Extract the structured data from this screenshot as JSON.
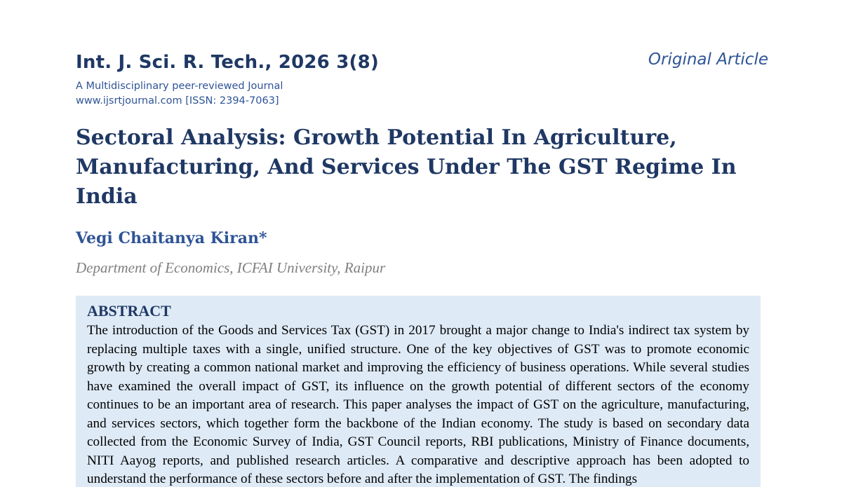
{
  "header": {
    "journal_title": "Int. J. Sci. R. Tech., 2026 3(8)",
    "journal_subtitle": "A Multidisciplinary peer-reviewed Journal",
    "journal_web": "www.ijsrtjournal.com [ISSN: 2394-7063]",
    "article_type": "Original Article"
  },
  "paper": {
    "title": "Sectoral Analysis: Growth Potential In Agriculture, Manufacturing, And Services Under The GST Regime In India",
    "author": "Vegi Chaitanya Kiran*",
    "affiliation": "Department of Economics, ICFAI University, Raipur"
  },
  "abstract": {
    "heading": "ABSTRACT",
    "text": "The introduction of the Goods and Services Tax (GST) in 2017 brought a major change to India's indirect tax system by replacing multiple taxes with a single, unified structure. One of the key objectives of GST was to promote economic growth by creating a common national market and improving the efficiency of business operations. While several studies have examined the overall impact of GST, its influence on the growth potential of different sectors of the economy continues to be an important area of research. This paper analyses the impact of GST on the agriculture, manufacturing, and services sectors, which together form the backbone of the Indian economy. The study is based on secondary data collected from the Economic Survey of India, GST Council reports, RBI publications, Ministry of Finance documents, NITI Aayog reports, and published research articles. A comparative and descriptive approach has been adopted to understand the performance of these sectors before and after the implementation of GST. The findings"
  },
  "colors": {
    "title_navy": "#1f3864",
    "accent_blue": "#2f5496",
    "affiliation_gray": "#7f7f7f",
    "abstract_background": "#deeaf6"
  }
}
